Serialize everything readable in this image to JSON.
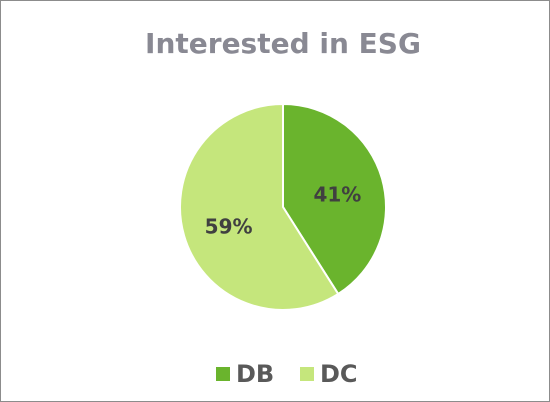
{
  "chart_data": {
    "type": "pie",
    "title": "Interested in ESG",
    "categories": [
      "DB",
      "DC"
    ],
    "values": [
      41,
      59
    ],
    "value_labels": [
      "41%",
      "59%"
    ],
    "colors": [
      "#6ab42d",
      "#c5e67c"
    ],
    "legend": "bottom"
  }
}
